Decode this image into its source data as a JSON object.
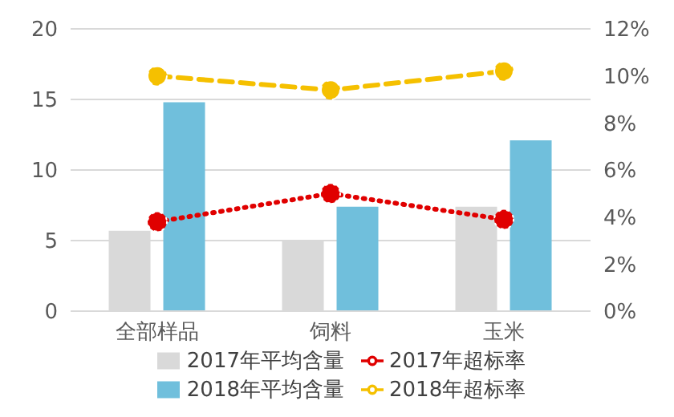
{
  "chart_data": {
    "type": "bar",
    "categories": [
      "全部样品",
      "饲料",
      "玉米"
    ],
    "series": [
      {
        "name": "2017年平均含量",
        "color": "#d9d9d9",
        "values": [
          5.7,
          5.0,
          7.4
        ]
      },
      {
        "name": "2018年平均含量",
        "color": "#70bfdc",
        "values": [
          14.8,
          7.4,
          12.1
        ]
      },
      {
        "name": "2017年超标率",
        "type": "line",
        "axis": "y2",
        "color": "#e00000",
        "values": [
          3.8,
          5.0,
          3.9
        ],
        "line_style": "dotted",
        "marker": "circle"
      },
      {
        "name": "2018年超标率",
        "type": "line",
        "axis": "y2",
        "color": "#f5c000",
        "values": [
          10.0,
          9.4,
          10.2
        ],
        "line_style": "dashed",
        "marker": "circle"
      }
    ],
    "ylim": [
      0,
      20
    ],
    "yticks": [
      0,
      5,
      10,
      15,
      20
    ],
    "y2lim": [
      0,
      12
    ],
    "y2ticks": [
      {
        "value": 0,
        "label": "0%"
      },
      {
        "value": 2,
        "label": "2%"
      },
      {
        "value": 4,
        "label": "4%"
      },
      {
        "value": 6,
        "label": "6%"
      },
      {
        "value": 8,
        "label": "8%"
      },
      {
        "value": 10,
        "label": "10%"
      },
      {
        "value": 12,
        "label": "12%"
      }
    ],
    "grid": "y",
    "legend": "bottom"
  }
}
